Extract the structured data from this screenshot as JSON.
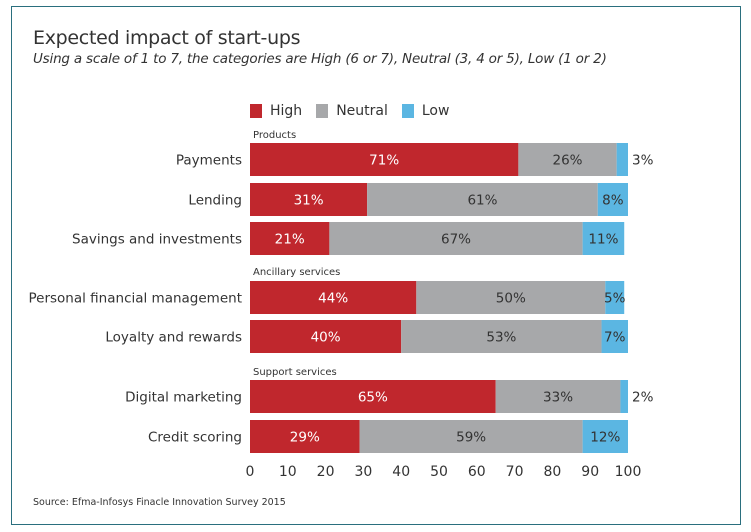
{
  "chart_data": {
    "type": "bar",
    "orientation": "horizontal-stacked",
    "title": "Expected impact of start-ups",
    "subtitle": "Using a scale of 1 to 7, the categories are High (6 or 7), Neutral (3, 4 or 5), Low (1 or 2)",
    "legend_placement": "top",
    "xlim": [
      0,
      100
    ],
    "x_ticks": [
      0,
      10,
      20,
      30,
      40,
      50,
      60,
      70,
      80,
      90,
      100
    ],
    "grid": false,
    "colors": {
      "High": "#c0272d",
      "Neutral": "#a7a8aa",
      "Low": "#5bb6e2"
    },
    "series": [
      {
        "name": "High"
      },
      {
        "name": "Neutral"
      },
      {
        "name": "Low"
      }
    ],
    "groups": [
      {
        "label": "Products",
        "categories": [
          {
            "label": "Payments",
            "values": [
              71,
              26,
              3
            ]
          },
          {
            "label": "Lending",
            "values": [
              31,
              61,
              8
            ]
          },
          {
            "label": "Savings and investments",
            "values": [
              21,
              67,
              11
            ]
          }
        ]
      },
      {
        "label": "Ancillary services",
        "categories": [
          {
            "label": "Personal financial management",
            "values": [
              44,
              50,
              5
            ]
          },
          {
            "label": "Loyalty and rewards",
            "values": [
              40,
              53,
              7
            ]
          }
        ]
      },
      {
        "label": "Support services",
        "categories": [
          {
            "label": "Digital marketing",
            "values": [
              65,
              33,
              2
            ]
          },
          {
            "label": "Credit scoring",
            "values": [
              29,
              59,
              12
            ]
          }
        ]
      }
    ]
  },
  "source": "Source: Efma-Infosys Finacle Innovation Survey 2015"
}
